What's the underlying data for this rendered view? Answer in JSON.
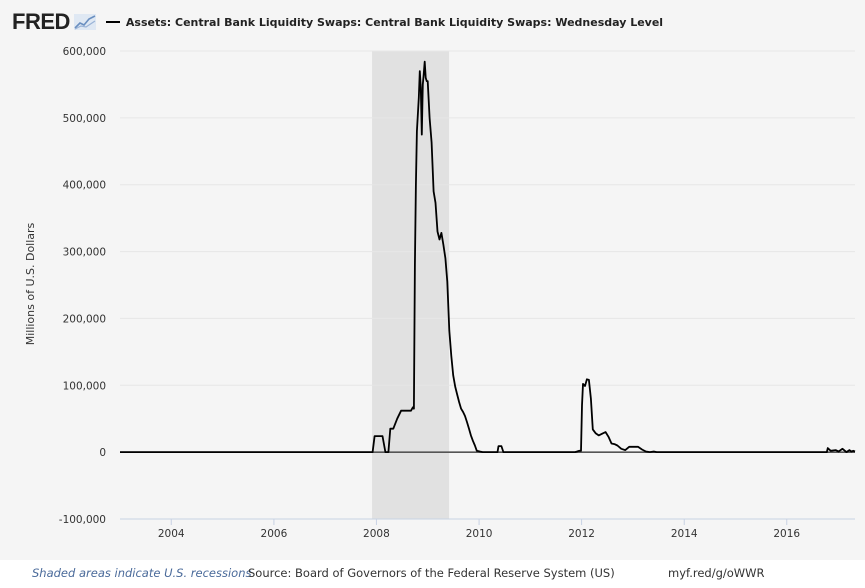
{
  "header": {
    "logo": "FRED",
    "series_title": "Assets: Central Bank Liquidity Swaps: Central Bank Liquidity Swaps: Wednesday Level"
  },
  "footer": {
    "recession_note": "Shaded areas indicate U.S. recessions",
    "source": "Source: Board of Governors of the Federal Reserve System (US)",
    "url": "myf.red/g/oWWR"
  },
  "colors": {
    "line": "#000000",
    "recession_shade": "#e1e1e1",
    "grid": "#e6e6e6",
    "zero_line": "#555555",
    "plot_bg": "#f5f5f5"
  },
  "chart_data": {
    "type": "line",
    "title": "Assets: Central Bank Liquidity Swaps: Central Bank Liquidity Swaps: Wednesday Level",
    "xlabel": "",
    "ylabel": "Millions of U.S. Dollars",
    "ylim": [
      -100000,
      600000
    ],
    "y_ticks": [
      -100000,
      0,
      100000,
      200000,
      300000,
      400000,
      500000,
      600000
    ],
    "y_tick_labels": [
      "-100,000",
      "0",
      "100,000",
      "200,000",
      "300,000",
      "400,000",
      "500,000",
      "600,000"
    ],
    "xlim": [
      "2003-01-01",
      "2017-05-01"
    ],
    "x_ticks": [
      "2004-01-01",
      "2006-01-01",
      "2008-01-01",
      "2010-01-01",
      "2012-01-01",
      "2014-01-01",
      "2016-01-01"
    ],
    "x_tick_labels": [
      "2004",
      "2006",
      "2008",
      "2010",
      "2012",
      "2014",
      "2016"
    ],
    "grid": true,
    "legend_position": "top-left",
    "recessions": [
      {
        "start": "2007-12-01",
        "end": "2009-06-01"
      }
    ],
    "series": [
      {
        "name": "Assets: Central Bank Liquidity Swaps: Central Bank Liquidity Swaps: Wednesday Level",
        "x": [
          "2003-01-01",
          "2007-12-05",
          "2007-12-19",
          "2008-01-16",
          "2008-02-13",
          "2008-03-05",
          "2008-03-26",
          "2008-04-09",
          "2008-04-30",
          "2008-05-28",
          "2008-06-25",
          "2008-07-16",
          "2008-08-20",
          "2008-09-03",
          "2008-09-17",
          "2008-09-24",
          "2008-10-01",
          "2008-10-08",
          "2008-10-15",
          "2008-10-29",
          "2008-11-05",
          "2008-11-12",
          "2008-11-19",
          "2008-11-26",
          "2008-12-03",
          "2008-12-10",
          "2008-12-17",
          "2008-12-24",
          "2008-12-31",
          "2009-01-14",
          "2009-01-28",
          "2009-02-11",
          "2009-02-25",
          "2009-03-11",
          "2009-03-25",
          "2009-04-08",
          "2009-04-22",
          "2009-05-06",
          "2009-05-20",
          "2009-06-03",
          "2009-06-17",
          "2009-07-01",
          "2009-07-15",
          "2009-07-29",
          "2009-08-12",
          "2009-08-26",
          "2009-09-09",
          "2009-09-23",
          "2009-10-07",
          "2009-10-21",
          "2009-11-04",
          "2009-11-18",
          "2009-12-02",
          "2009-12-16",
          "2010-01-06",
          "2010-01-27",
          "2010-02-10",
          "2010-05-12",
          "2010-05-19",
          "2010-06-09",
          "2010-06-23",
          "2010-12-01",
          "2011-06-01",
          "2011-11-16",
          "2011-11-30",
          "2011-12-14",
          "2011-12-21",
          "2011-12-28",
          "2012-01-04",
          "2012-01-11",
          "2012-01-25",
          "2012-02-08",
          "2012-02-22",
          "2012-03-07",
          "2012-03-21",
          "2012-04-11",
          "2012-05-02",
          "2012-05-30",
          "2012-06-20",
          "2012-07-11",
          "2012-08-01",
          "2012-08-22",
          "2012-09-12",
          "2012-10-10",
          "2012-11-07",
          "2012-12-05",
          "2013-01-09",
          "2013-02-06",
          "2013-03-06",
          "2013-04-03",
          "2013-05-01",
          "2013-05-29",
          "2013-06-19",
          "2013-07-17",
          "2014-01-01",
          "2015-01-01",
          "2016-01-01",
          "2016-09-01",
          "2016-10-12",
          "2016-10-19",
          "2016-11-09",
          "2016-12-14",
          "2017-01-04",
          "2017-02-01",
          "2017-03-01",
          "2017-03-22",
          "2017-04-05",
          "2017-04-19",
          "2017-05-01"
        ],
        "values": [
          0,
          0,
          24000,
          24000,
          24000,
          0,
          0,
          35000,
          35000,
          50000,
          62000,
          62000,
          62000,
          62000,
          67000,
          65000,
          280000,
          400000,
          480000,
          530000,
          570000,
          545000,
          475000,
          550000,
          565000,
          584000,
          560000,
          555000,
          555000,
          500000,
          463000,
          390000,
          373000,
          330000,
          318000,
          328000,
          310000,
          290000,
          255000,
          182000,
          144000,
          115000,
          98000,
          86000,
          75000,
          65000,
          60000,
          54000,
          45000,
          35000,
          25000,
          17000,
          10000,
          2000,
          1000,
          0,
          0,
          0,
          9000,
          9000,
          0,
          0,
          0,
          0,
          1000,
          2000,
          2000,
          2000,
          70000,
          102000,
          99000,
          109000,
          108000,
          80000,
          34000,
          28000,
          25000,
          28000,
          30000,
          23000,
          13000,
          12000,
          10000,
          5000,
          3000,
          8000,
          8000,
          8000,
          4000,
          1000,
          0,
          1000,
          0,
          0,
          0,
          0,
          0,
          0,
          0,
          6000,
          2000,
          3000,
          1000,
          5000,
          0,
          3000,
          1000,
          2000,
          1000
        ]
      }
    ]
  }
}
